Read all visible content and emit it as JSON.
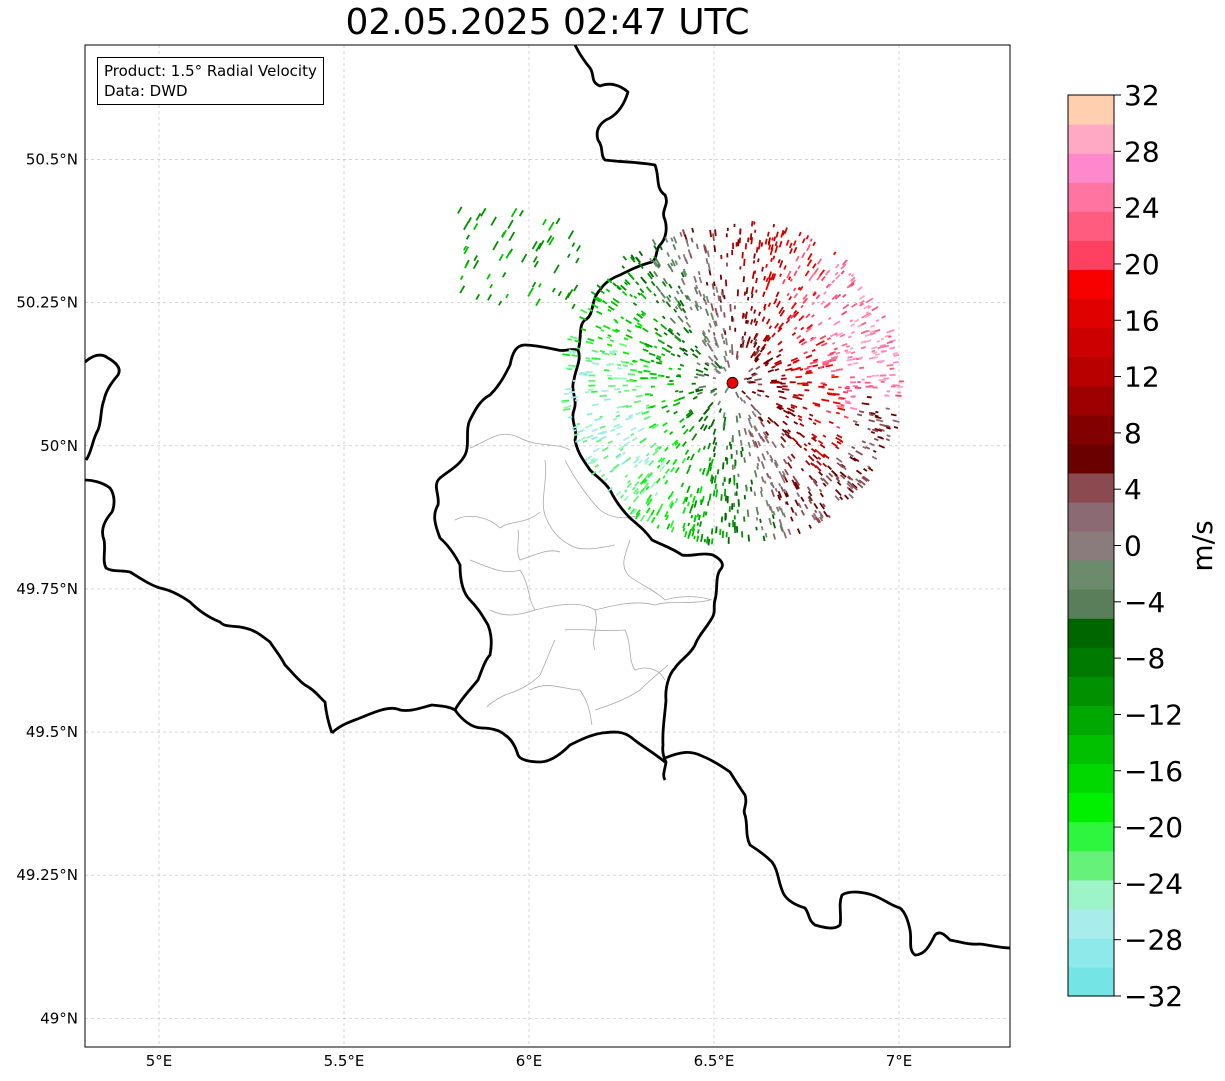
{
  "title": "02.05.2025 02:47 UTC",
  "info_box": {
    "product": "Product: 1.5° Radial Velocity",
    "data": "Data: DWD"
  },
  "map": {
    "lon_range": [
      4.8,
      7.3
    ],
    "lat_range": [
      48.95,
      50.7
    ],
    "lat_ticks": [
      {
        "value": 50.5,
        "label": "50.5°N"
      },
      {
        "value": 50.25,
        "label": "50.25°N"
      },
      {
        "value": 50.0,
        "label": "50°N"
      },
      {
        "value": 49.75,
        "label": "49.75°N"
      },
      {
        "value": 49.5,
        "label": "49.5°N"
      },
      {
        "value": 49.25,
        "label": "49.25°N"
      },
      {
        "value": 49.0,
        "label": "49°N"
      }
    ],
    "lon_ticks": [
      {
        "value": 5.0,
        "label": "5°E"
      },
      {
        "value": 5.5,
        "label": "5.5°E"
      },
      {
        "value": 6.0,
        "label": "6°E"
      },
      {
        "value": 6.5,
        "label": "6.5°E"
      },
      {
        "value": 7.0,
        "label": "7°E"
      }
    ],
    "gridlines": true,
    "radar_site": {
      "lon": 6.55,
      "lat": 50.11
    }
  },
  "colorbar": {
    "label": "m/s",
    "min": -32,
    "max": 32,
    "ticks": [
      32,
      28,
      24,
      20,
      16,
      12,
      8,
      4,
      0,
      -4,
      -8,
      -12,
      -16,
      -20,
      -24,
      -28,
      -32
    ],
    "tick_labels": [
      "32",
      "28",
      "24",
      "20",
      "16",
      "12",
      "8",
      "4",
      "0",
      "−4",
      "−8",
      "−12",
      "−16",
      "−20",
      "−24",
      "−28",
      "−32"
    ],
    "colors_bottom_to_top": [
      "#75e4e4",
      "#8eeaea",
      "#a8ecec",
      "#9df4c8",
      "#66f27a",
      "#2ef53d",
      "#00f000",
      "#00d800",
      "#00c000",
      "#00a800",
      "#009000",
      "#007a00",
      "#006600",
      "#5a7e5a",
      "#6c8a6c",
      "#8a7c7c",
      "#8c6a74",
      "#8a4a50",
      "#6a0000",
      "#820000",
      "#9c0000",
      "#b80000",
      "#cc0000",
      "#e00000",
      "#f80000",
      "#ff4060",
      "#ff5c80",
      "#ff74a0",
      "#ff88cc",
      "#ffaac4",
      "#ffcfb0"
    ]
  }
}
